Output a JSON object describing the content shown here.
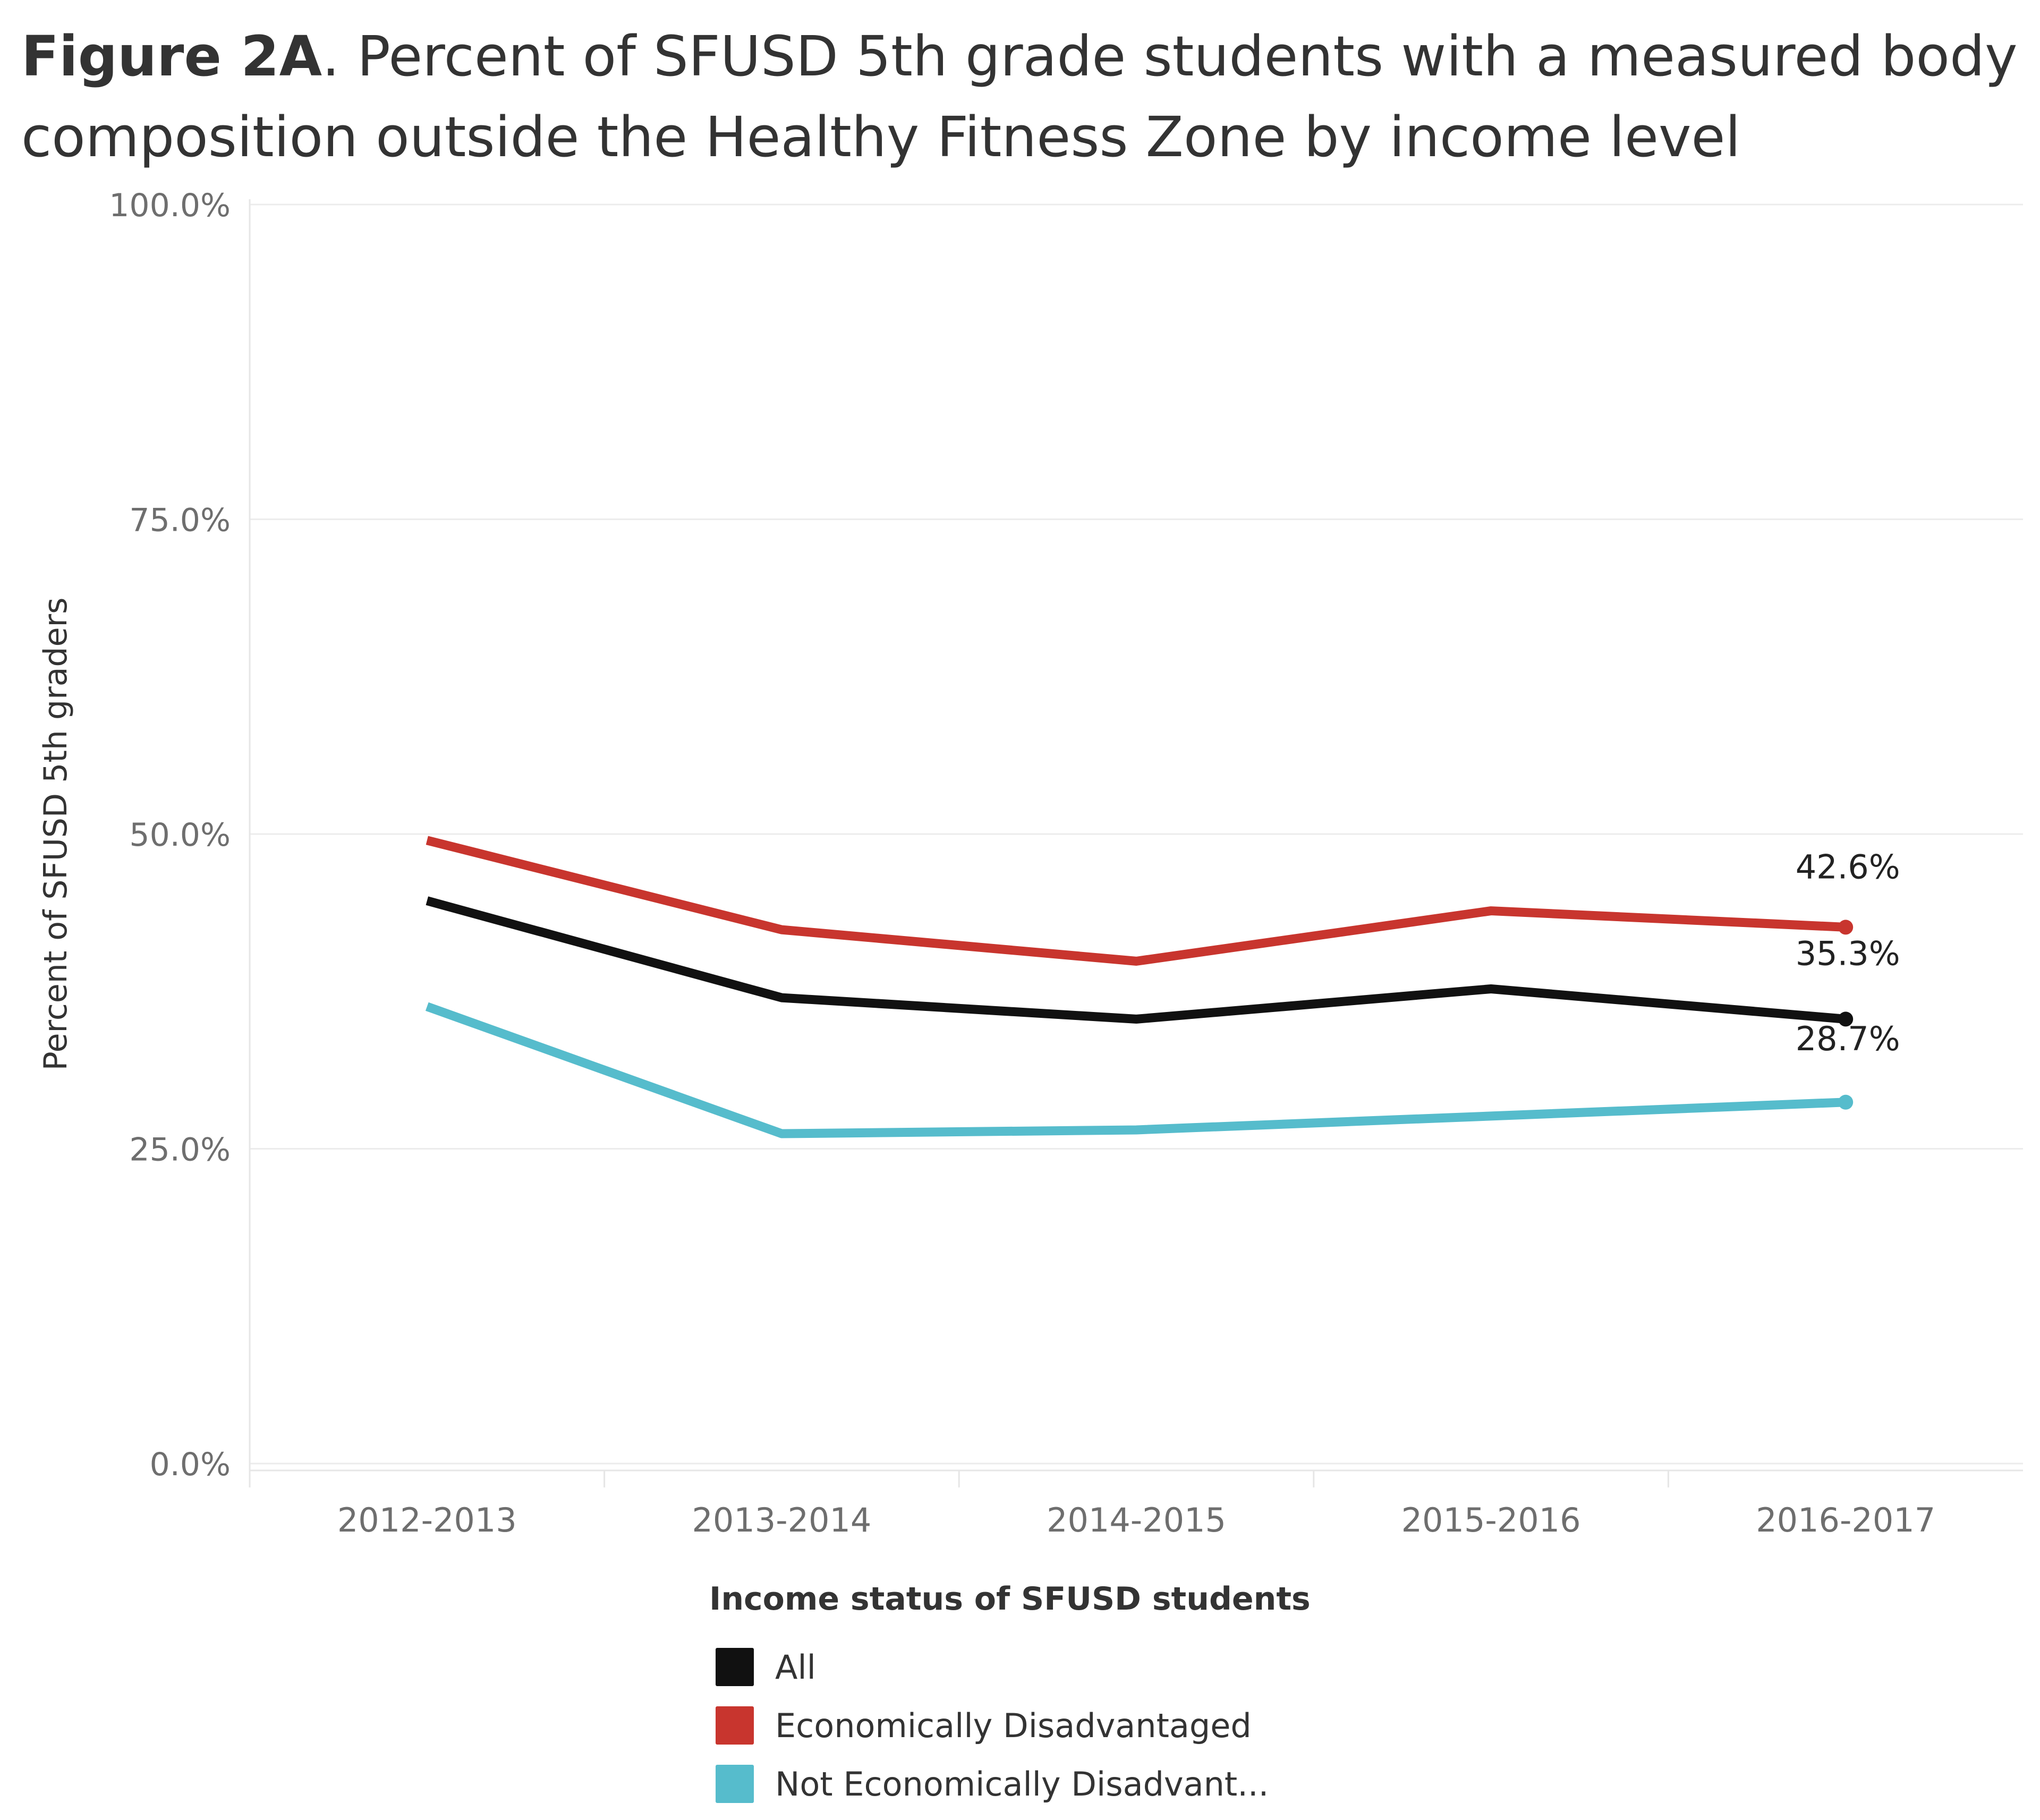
{
  "title": {
    "bold": "Figure 2A",
    "rest": ". Percent of SFUSD 5th grade students with a measured body composition outside the Healthy Fitness Zone by income level"
  },
  "chart_data": {
    "type": "line",
    "x": [
      "2012-2013",
      "2013-2014",
      "2014-2015",
      "2015-2016",
      "2016-2017"
    ],
    "ylabel": "Percent of SFUSD 5th graders",
    "xlabel": "",
    "ylim": [
      0,
      100
    ],
    "yticks": [
      0,
      25,
      50,
      75,
      100
    ],
    "ytick_labels": [
      "0.0%",
      "25.0%",
      "50.0%",
      "75.0%",
      "100.0%"
    ],
    "grid": true,
    "series": [
      {
        "name": "All",
        "color": "#111111",
        "values": [
          44.7,
          37.0,
          35.3,
          37.7,
          35.3
        ],
        "end_label": "35.3%"
      },
      {
        "name": "Economically Disadvantaged",
        "color": "#c8352e",
        "values": [
          49.5,
          42.4,
          39.9,
          43.9,
          42.6
        ],
        "end_label": "42.6%"
      },
      {
        "name": "Not Economically Disadvant...",
        "color": "#56bccc",
        "values": [
          36.3,
          26.2,
          26.5,
          27.6,
          28.7
        ],
        "end_label": "28.7%"
      }
    ],
    "legend": {
      "title": "Income status of SFUSD students",
      "position": "bottom"
    }
  }
}
